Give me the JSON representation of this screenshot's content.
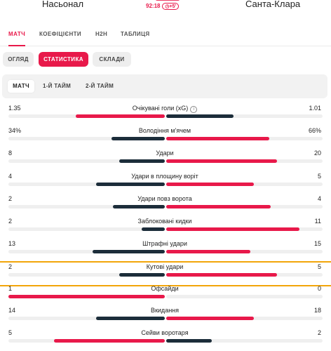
{
  "colors": {
    "accent": "#e8194a",
    "winner": "#e8194a",
    "loser": "#1c2d3a",
    "highlight": "#f2a50a"
  },
  "match": {
    "home_team": "Насьонал",
    "away_team": "Санта-Клара",
    "time": "92:18",
    "added_time": "+5'",
    "clock_icon": "clock-icon"
  },
  "main_tabs": [
    "МАТЧ",
    "КОЕФІЦІЄНТИ",
    "H2H",
    "ТАБЛИЦЯ"
  ],
  "sub_tabs": [
    "ОГЛЯД",
    "СТАТИСТИКА",
    "СКЛАДИ"
  ],
  "periods": [
    "МАТЧ",
    "1-Й ТАЙМ",
    "2-Й ТАЙМ"
  ],
  "stats": [
    {
      "name": "Очікувані голи (xG)",
      "home": "1.35",
      "away": "1.01",
      "home_frac": 0.57,
      "away_frac": 0.43,
      "info_icon": "info-icon"
    },
    {
      "name": "Володіння м'ячем",
      "home": "34%",
      "away": "66%",
      "home_frac": 0.34,
      "away_frac": 0.66
    },
    {
      "name": "Удари",
      "home": "8",
      "away": "20",
      "home_frac": 0.29,
      "away_frac": 0.71
    },
    {
      "name": "Удари в площину воріт",
      "home": "4",
      "away": "5",
      "home_frac": 0.44,
      "away_frac": 0.56
    },
    {
      "name": "Удари повз ворота",
      "home": "2",
      "away": "4",
      "home_frac": 0.33,
      "away_frac": 0.67
    },
    {
      "name": "Заблоковані кидки",
      "home": "2",
      "away": "11",
      "home_frac": 0.15,
      "away_frac": 0.85
    },
    {
      "name": "Штрафні удари",
      "home": "13",
      "away": "15",
      "home_frac": 0.46,
      "away_frac": 0.54
    },
    {
      "name": "Кутові удари",
      "home": "2",
      "away": "5",
      "home_frac": 0.29,
      "away_frac": 0.71
    },
    {
      "name": "Офсайди",
      "home": "1",
      "away": "0",
      "home_frac": 1.0,
      "away_frac": 0.0
    },
    {
      "name": "Вкидання",
      "home": "14",
      "away": "18",
      "home_frac": 0.44,
      "away_frac": 0.56
    },
    {
      "name": "Сейви воротаря",
      "home": "5",
      "away": "2",
      "home_frac": 0.71,
      "away_frac": 0.29
    }
  ]
}
